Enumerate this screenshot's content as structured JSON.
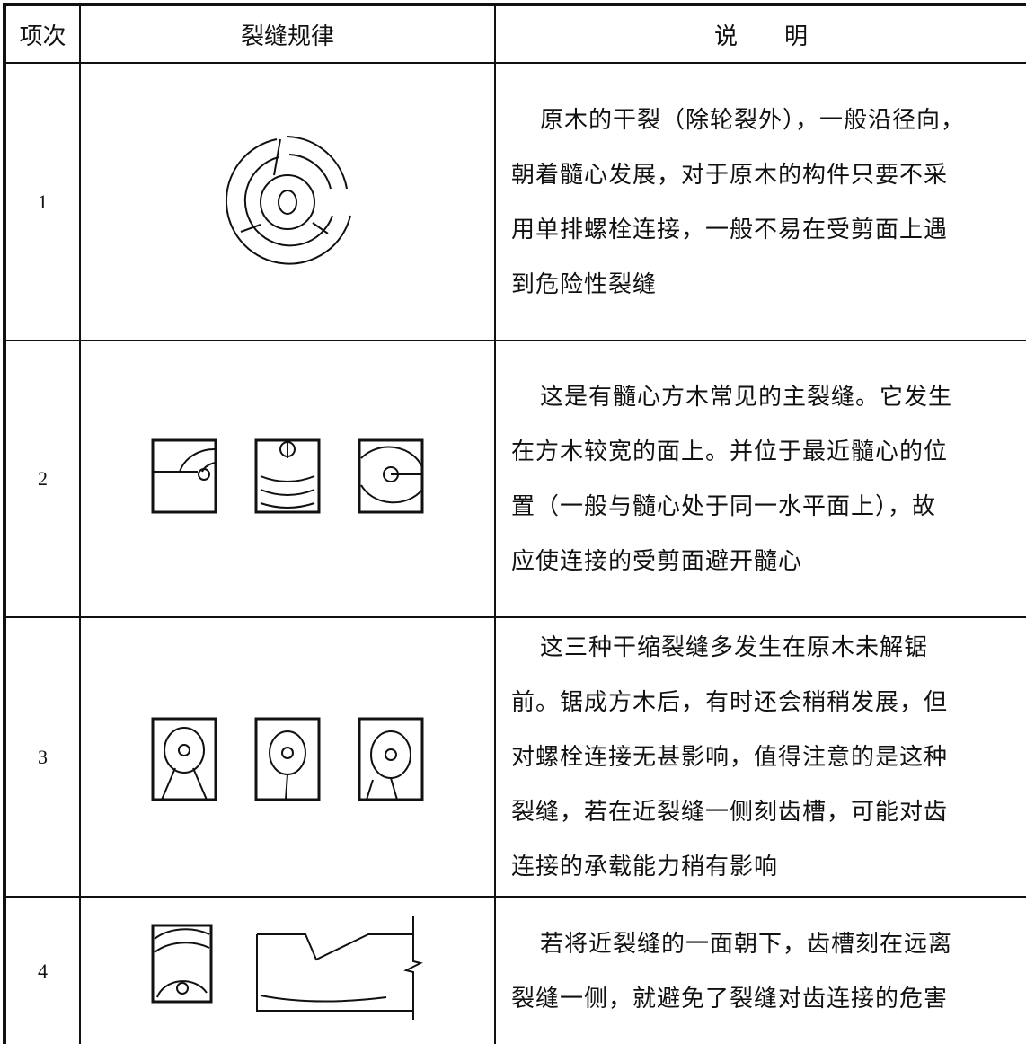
{
  "header": {
    "col1": "项次",
    "col2": "裂缝规律",
    "col3": "说　　明"
  },
  "rows": [
    {
      "index": "1",
      "description": [
        "原木的干裂（除轮裂外），一般沿径向，",
        "朝着髓心发展，对于原木的构件只要不采",
        "用单排螺栓连接，一般不易在受剪面上遇",
        "到危险性裂缝"
      ]
    },
    {
      "index": "2",
      "description": [
        "这是有髓心方木常见的主裂缝。它发生",
        "在方木较宽的面上。并位于最近髓心的位",
        "置（一般与髓心处于同一水平面上），故",
        "应使连接的受剪面避开髓心"
      ]
    },
    {
      "index": "3",
      "description": [
        "这三种干缩裂缝多发生在原木未解锯",
        "前。锯成方木后，有时还会稍稍发展，但",
        "对螺栓连接无甚影响，值得注意的是这种",
        "裂缝，若在近裂缝一侧刻齿槽，可能对齿",
        "连接的承载能力稍有影响"
      ]
    },
    {
      "index": "4",
      "description": [
        "若将近裂缝的一面朝下，齿槽刻在远离",
        "裂缝一侧，就避免了裂缝对齿连接的危害"
      ]
    }
  ]
}
